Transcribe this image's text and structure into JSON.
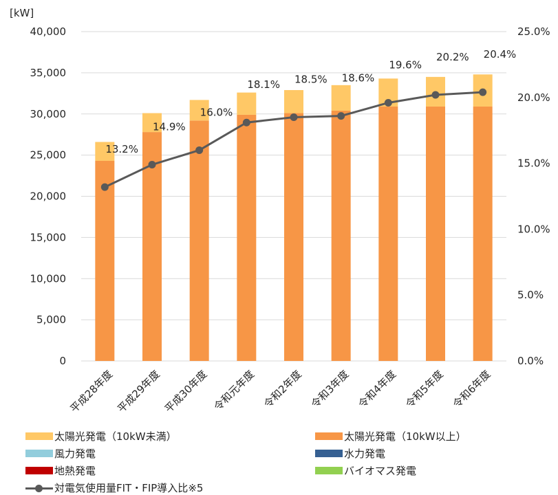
{
  "chart_data": {
    "type": "bar",
    "stacked": true,
    "unit_label": "[kW]",
    "categories": [
      "平成28年度",
      "平成29年度",
      "平成30年度",
      "令和元年度",
      "令和2年度",
      "令和3年度",
      "令和4年度",
      "令和5年度",
      "令和6年度"
    ],
    "series": [
      {
        "name": "太陽光発電（10kW以上）",
        "type": "bar",
        "color": "#F79646",
        "values": [
          24300,
          27800,
          29200,
          29900,
          30100,
          30400,
          30900,
          30900,
          30900
        ]
      },
      {
        "name": "太陽光発電（10kW未満）",
        "type": "bar",
        "color": "#FFC866",
        "values": [
          2300,
          2300,
          2500,
          2700,
          2800,
          3100,
          3400,
          3600,
          3900
        ]
      },
      {
        "name": "風力発電",
        "type": "bar",
        "color": "#92CDDC",
        "values": [
          0,
          0,
          0,
          0,
          0,
          0,
          0,
          0,
          0
        ]
      },
      {
        "name": "水力発電",
        "type": "bar",
        "color": "#366092",
        "values": [
          0,
          0,
          0,
          0,
          0,
          0,
          0,
          0,
          0
        ]
      },
      {
        "name": "地熱発電",
        "type": "bar",
        "color": "#C00000",
        "values": [
          0,
          0,
          0,
          0,
          0,
          0,
          0,
          0,
          0
        ]
      },
      {
        "name": "バイオマス発電",
        "type": "bar",
        "color": "#92D050",
        "values": [
          0,
          0,
          0,
          0,
          0,
          0,
          0,
          0,
          0
        ]
      },
      {
        "name": "対電気使用量FIT・FIP導入比※5",
        "type": "line",
        "axis": "right",
        "color": "#595959",
        "values": [
          13.2,
          14.9,
          16.0,
          18.1,
          18.5,
          18.6,
          19.6,
          20.2,
          20.4
        ],
        "labels": [
          "13.2%",
          "14.9%",
          "16.0%",
          "18.1%",
          "18.5%",
          "18.6%",
          "19.6%",
          "20.2%",
          "20.4%"
        ]
      }
    ],
    "y_left": {
      "min": 0,
      "max": 40000,
      "ticks": [
        "0",
        "5,000",
        "10,000",
        "15,000",
        "20,000",
        "25,000",
        "30,000",
        "35,000",
        "40,000"
      ]
    },
    "y_right": {
      "min": 0,
      "max": 25,
      "ticks": [
        "0.0%",
        "5.0%",
        "10.0%",
        "15.0%",
        "20.0%",
        "25.0%"
      ]
    },
    "grid": true,
    "legend_position": "bottom"
  },
  "legend": [
    {
      "label": "太陽光発電（10kW未満）",
      "color": "#FFC866",
      "kind": "box"
    },
    {
      "label": "太陽光発電（10kW以上）",
      "color": "#F79646",
      "kind": "box"
    },
    {
      "label": "風力発電",
      "color": "#92CDDC",
      "kind": "box"
    },
    {
      "label": "水力発電",
      "color": "#366092",
      "kind": "box"
    },
    {
      "label": "地熱発電",
      "color": "#C00000",
      "kind": "box"
    },
    {
      "label": "バイオマス発電",
      "color": "#92D050",
      "kind": "box"
    },
    {
      "label": "対電気使用量FIT・FIP導入比※5",
      "color": "#595959",
      "kind": "line"
    }
  ]
}
